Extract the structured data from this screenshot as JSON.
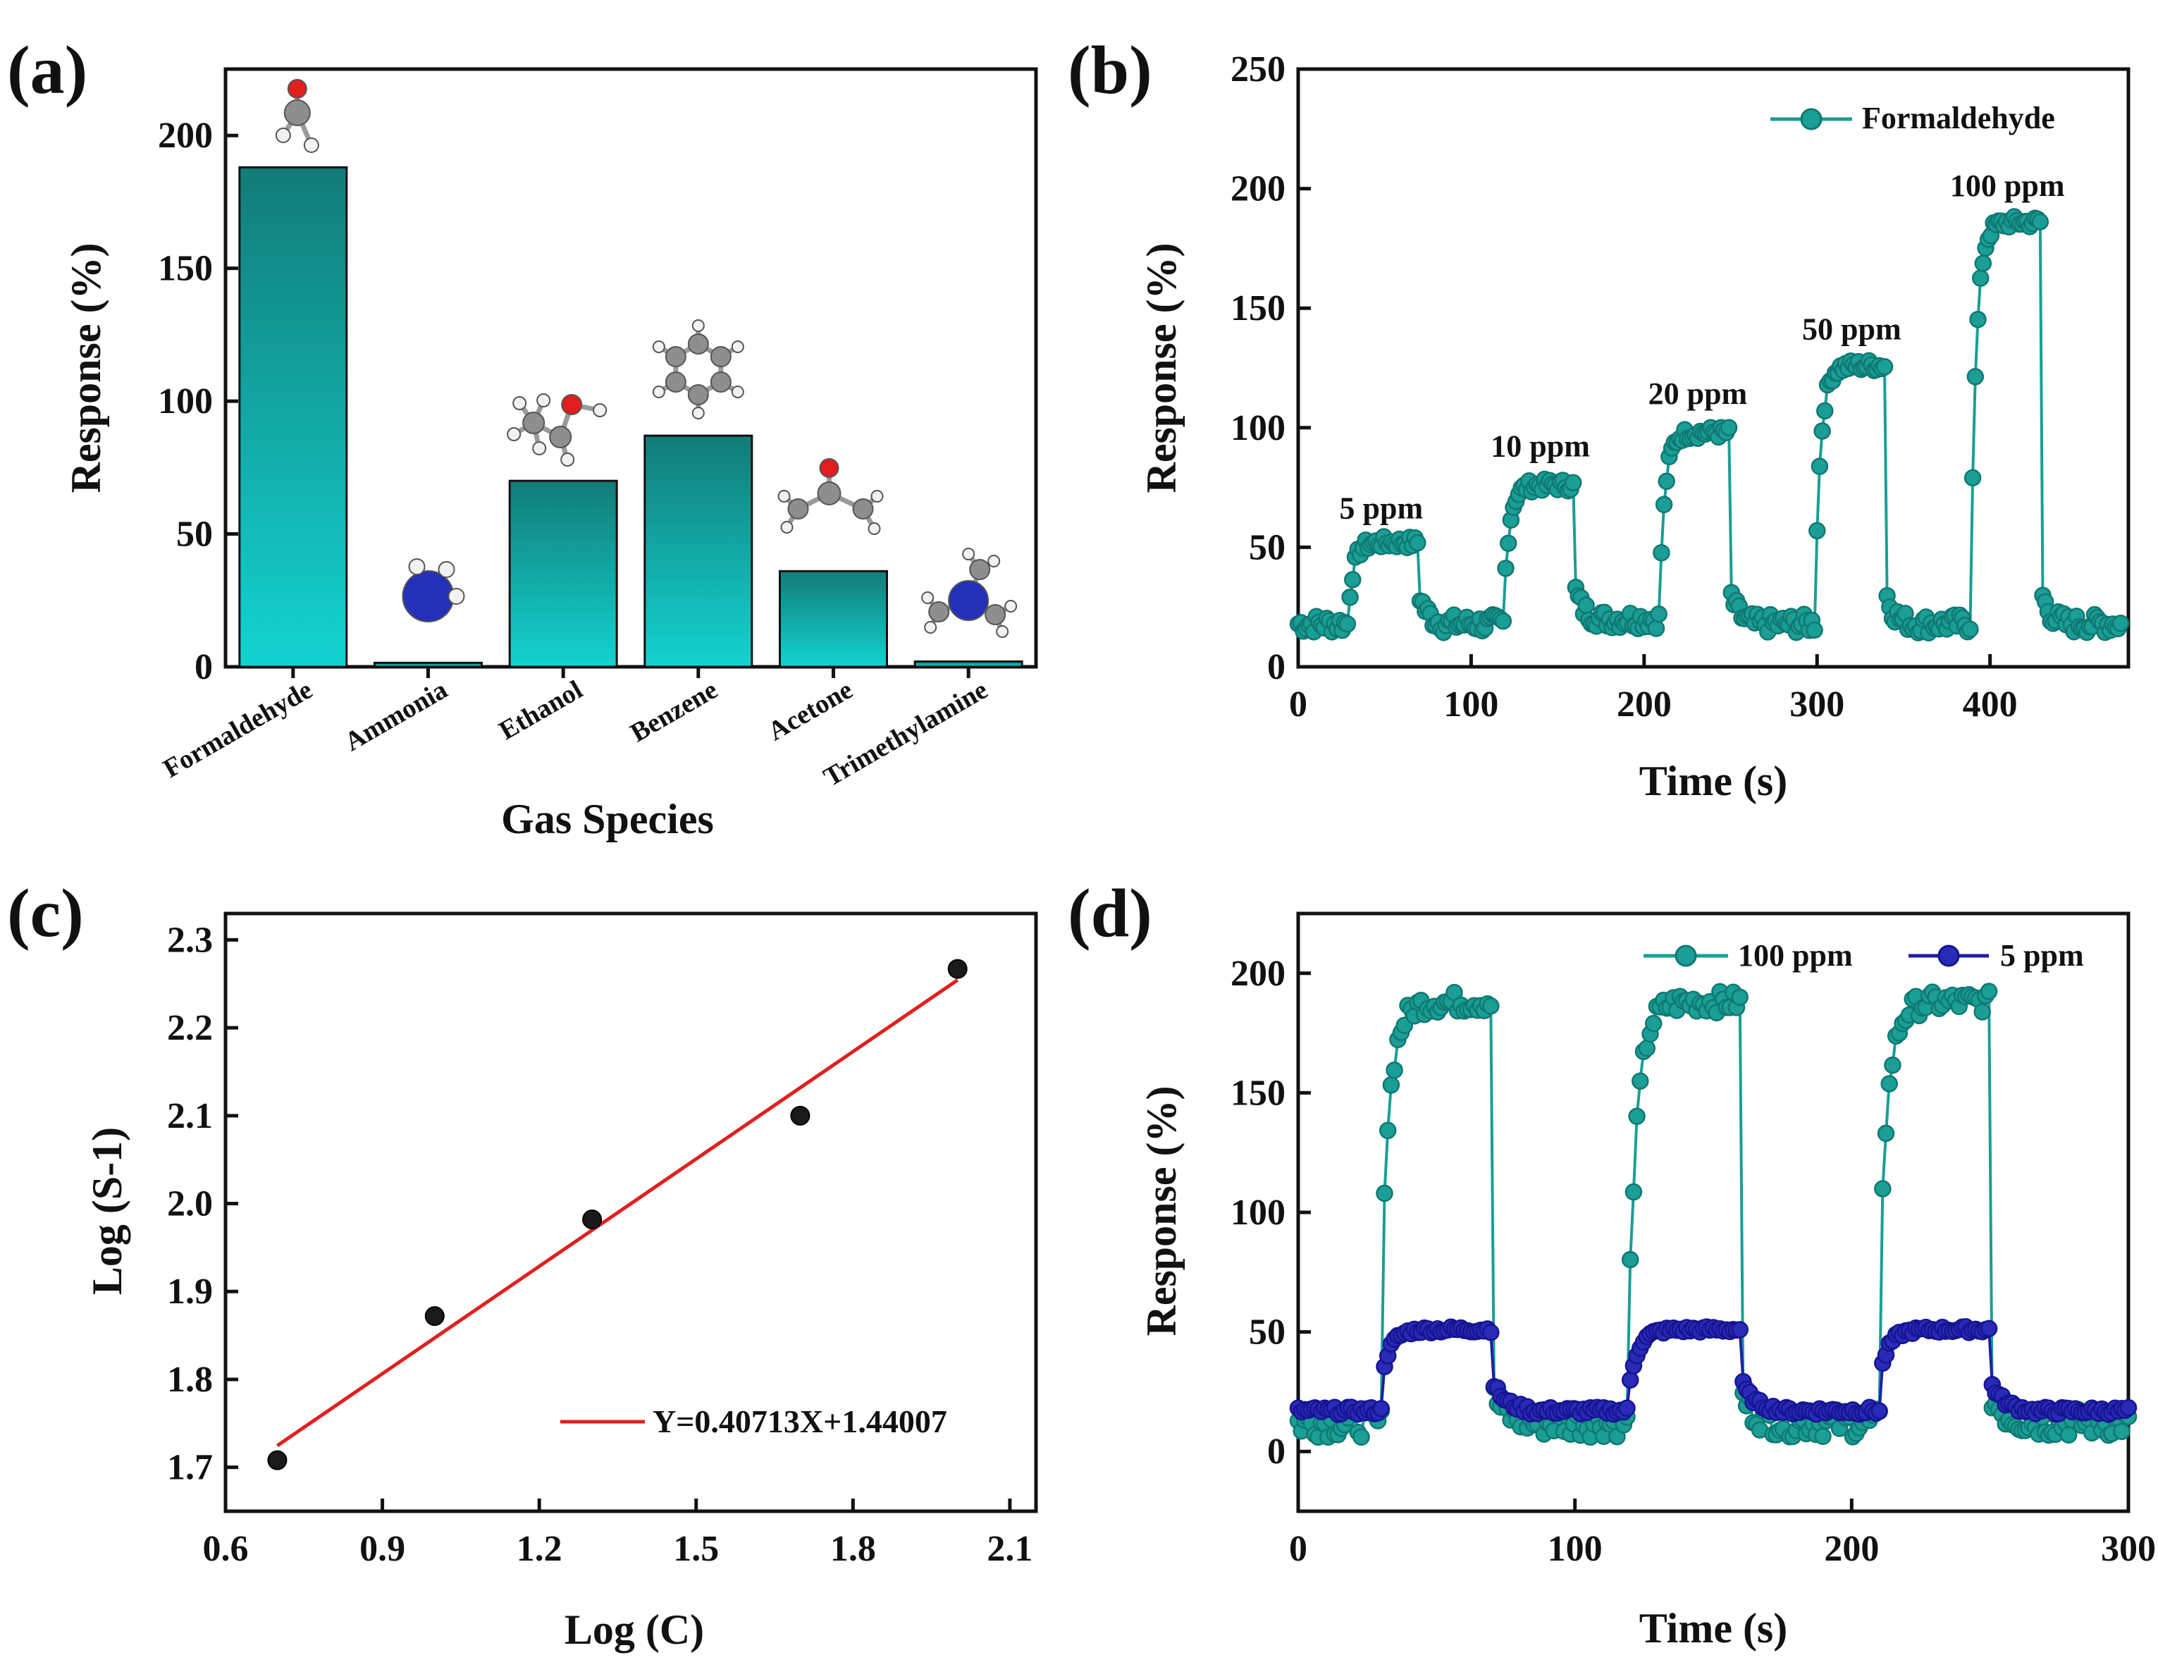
{
  "colors": {
    "teal": "#1a9e96",
    "teal_dark": "#0f7872",
    "bar_top": "#127c78",
    "bar_bottom": "#13d3d1",
    "navy": "#1f1fa6",
    "red": "#e21f1f",
    "black": "#111111"
  },
  "chart_data": [
    {
      "panel": "(a)",
      "type": "bar",
      "xlabel": "Gas Species",
      "ylabel": "Response (%)",
      "ylim": [
        0,
        225
      ],
      "yticks": [
        0,
        50,
        100,
        150,
        200
      ],
      "categories": [
        "Formaldehyde",
        "Ammonia",
        "Ethanol",
        "Benzene",
        "Acetone",
        "Trimethylamine"
      ],
      "values": [
        188,
        1.5,
        70,
        87,
        36,
        2
      ],
      "molecule_icons": [
        "formaldehyde-molecule",
        "ammonia-molecule",
        "ethanol-molecule",
        "benzene-molecule",
        "acetone-molecule",
        "trimethylamine-molecule"
      ]
    },
    {
      "panel": "(b)",
      "type": "line",
      "xlabel": "Time (s)",
      "ylabel": "Response (%)",
      "xlim": [
        0,
        480
      ],
      "ylim": [
        0,
        250
      ],
      "xticks": [
        0,
        100,
        200,
        300,
        400
      ],
      "yticks": [
        0,
        50,
        100,
        150,
        200,
        250
      ],
      "legend": "top-right",
      "series": [
        {
          "name": "Formaldehyde",
          "cycles": [
            {
              "t_on": 30,
              "t_off": 70,
              "base": 18,
              "peak": 52
            },
            {
              "t_on": 120,
              "t_off": 160,
              "base": 20,
              "peak": 76
            },
            {
              "t_on": 210,
              "t_off": 250,
              "base": 18,
              "peak": 98
            },
            {
              "t_on": 300,
              "t_off": 340,
              "base": 18,
              "peak": 126
            },
            {
              "t_on": 390,
              "t_off": 430,
              "base": 18,
              "peak": 186
            }
          ]
        }
      ],
      "annotations": [
        {
          "text": "5 ppm",
          "x": 48,
          "y": 62
        },
        {
          "text": "10 ppm",
          "x": 140,
          "y": 88
        },
        {
          "text": "20 ppm",
          "x": 231,
          "y": 110
        },
        {
          "text": "50 ppm",
          "x": 320,
          "y": 137
        },
        {
          "text": "100 ppm",
          "x": 410,
          "y": 197
        }
      ]
    },
    {
      "panel": "(c)",
      "type": "scatter",
      "xlabel": "Log (C)",
      "ylabel": "Log (S-1)",
      "xlim": [
        0.6,
        2.15
      ],
      "ylim": [
        1.65,
        2.33
      ],
      "xticks": [
        "0.6",
        "0.9",
        "1.2",
        "1.5",
        "1.8",
        "2.1"
      ],
      "yticks": [
        "1.7",
        "1.8",
        "1.9",
        "2.0",
        "2.1",
        "2.2",
        "2.3"
      ],
      "points": [
        [
          0.699,
          1.708
        ],
        [
          1.0,
          1.872
        ],
        [
          1.301,
          1.982
        ],
        [
          1.699,
          2.1
        ],
        [
          2.0,
          2.267
        ]
      ],
      "fit": {
        "slope": 0.40713,
        "intercept": 1.44007,
        "x_range": [
          0.699,
          2.0
        ]
      },
      "legend": "Y=0.40713X+1.44007"
    },
    {
      "panel": "(d)",
      "type": "line",
      "xlabel": "Time (s)",
      "ylabel": "Response (%)",
      "xlim": [
        0,
        300
      ],
      "ylim": [
        -25,
        225
      ],
      "xticks": [
        0,
        100,
        200,
        300
      ],
      "yticks": [
        0,
        50,
        100,
        150,
        200
      ],
      "legend": "top-right",
      "series": [
        {
          "name": "100 ppm",
          "base": 12,
          "peak": 188,
          "cycles": [
            [
              30,
              70
            ],
            [
              120,
              160
            ],
            [
              210,
              250
            ]
          ]
        },
        {
          "name": "5 ppm",
          "base": 17,
          "peak": 51,
          "cycles": [
            [
              30,
              70
            ],
            [
              120,
              160
            ],
            [
              210,
              250
            ]
          ]
        }
      ]
    }
  ]
}
